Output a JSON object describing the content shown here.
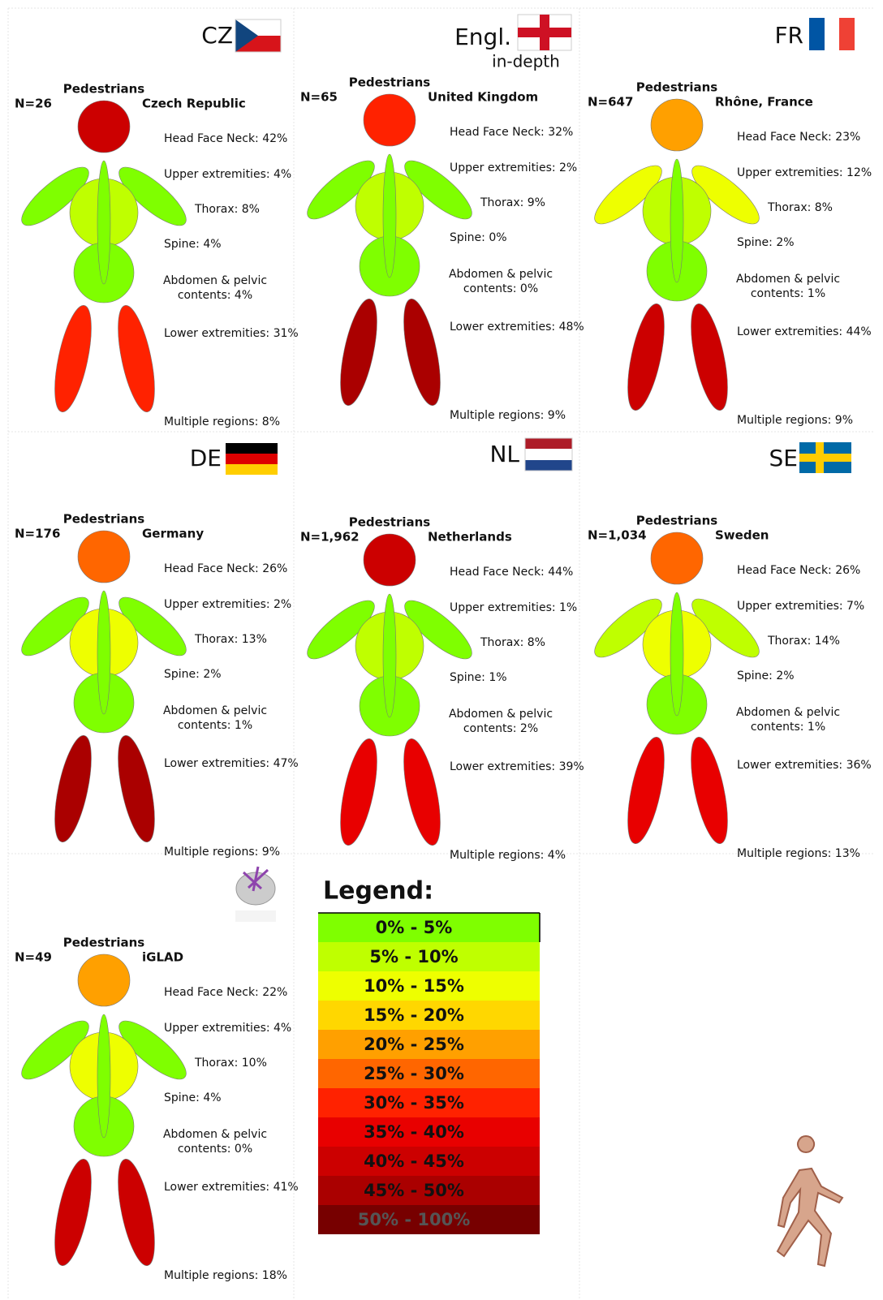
{
  "legend": {
    "title": "Legend:",
    "items": [
      {
        "label": "0% - 5%",
        "color": "#7fff00"
      },
      {
        "label": "5% - 10%",
        "color": "#bfff00"
      },
      {
        "label": "10% - 15%",
        "color": "#eeff00"
      },
      {
        "label": "15% - 20%",
        "color": "#ffd700"
      },
      {
        "label": "20% - 25%",
        "color": "#ffa000"
      },
      {
        "label": "25% - 30%",
        "color": "#ff6600"
      },
      {
        "label": "30% - 35%",
        "color": "#ff2200"
      },
      {
        "label": "35% - 40%",
        "color": "#e80000"
      },
      {
        "label": "40% - 45%",
        "color": "#cc0000"
      },
      {
        "label": "45% - 50%",
        "color": "#aa0000"
      },
      {
        "label": "50% - 100%",
        "color": "#770000"
      }
    ]
  },
  "panels": [
    {
      "code": "CZ",
      "n": "N=26",
      "group": "Pedestrians",
      "region": "Czech Republic",
      "texts": {
        "head": "Head Face Neck: 42%",
        "upper": "Upper extremities: 4%",
        "thorax": "Thorax: 8%",
        "spine": "Spine: 4%",
        "abdomen": [
          "Abdomen & pelvic",
          "contents: 4%"
        ],
        "lower": "Lower extremities: 31%",
        "multiple": "Multiple regions: 8%"
      },
      "colors": {
        "head": "#cc0000",
        "arms": "#7fff00",
        "thorax": "#bfff00",
        "spine": "#7fff00",
        "abdomen": "#7fff00",
        "legs": "#ff2200"
      }
    },
    {
      "code": "Engl.",
      "subcode": "in-depth",
      "n": "N=65",
      "group": "Pedestrians",
      "region": "United Kingdom",
      "texts": {
        "head": "Head Face Neck: 32%",
        "upper": "Upper extremities: 2%",
        "thorax": "Thorax: 9%",
        "spine": "Spine: 0%",
        "abdomen": [
          "Abdomen & pelvic",
          "contents: 0%"
        ],
        "lower": "Lower extremities: 48%",
        "multiple": "Multiple regions: 9%"
      },
      "colors": {
        "head": "#ff2200",
        "arms": "#7fff00",
        "thorax": "#bfff00",
        "spine": "#7fff00",
        "abdomen": "#7fff00",
        "legs": "#aa0000"
      }
    },
    {
      "code": "FR",
      "n": "N=647",
      "group": "Pedestrians",
      "region": "Rhône, France",
      "texts": {
        "head": "Head Face Neck: 23%",
        "upper": "Upper extremities: 12%",
        "thorax": "Thorax: 8%",
        "spine": "Spine: 2%",
        "abdomen": [
          "Abdomen & pelvic",
          "contents: 1%"
        ],
        "lower": "Lower extremities: 44%",
        "multiple": "Multiple regions: 9%"
      },
      "colors": {
        "head": "#ffa000",
        "arms": "#eeff00",
        "thorax": "#bfff00",
        "spine": "#7fff00",
        "abdomen": "#7fff00",
        "legs": "#cc0000"
      }
    },
    {
      "code": "DE",
      "n": "N=176",
      "group": "Pedestrians",
      "region": "Germany",
      "texts": {
        "head": "Head Face Neck: 26%",
        "upper": "Upper extremities: 2%",
        "thorax": "Thorax: 13%",
        "spine": "Spine: 2%",
        "abdomen": [
          "Abdomen & pelvic",
          "contents: 1%"
        ],
        "lower": "Lower extremities: 47%",
        "multiple": "Multiple regions: 9%"
      },
      "colors": {
        "head": "#ff6600",
        "arms": "#7fff00",
        "thorax": "#eeff00",
        "spine": "#7fff00",
        "abdomen": "#7fff00",
        "legs": "#aa0000"
      }
    },
    {
      "code": "NL",
      "n": "N=1,962",
      "group": "Pedestrians",
      "region": "Netherlands",
      "texts": {
        "head": "Head Face Neck: 44%",
        "upper": "Upper extremities: 1%",
        "thorax": "Thorax: 8%",
        "spine": "Spine: 1%",
        "abdomen": [
          "Abdomen & pelvic",
          "contents: 2%"
        ],
        "lower": "Lower extremities: 39%",
        "multiple": "Multiple regions: 4%"
      },
      "colors": {
        "head": "#cc0000",
        "arms": "#7fff00",
        "thorax": "#bfff00",
        "spine": "#7fff00",
        "abdomen": "#7fff00",
        "legs": "#e80000"
      }
    },
    {
      "code": "SE",
      "n": "N=1,034",
      "group": "Pedestrians",
      "region": "Sweden",
      "texts": {
        "head": "Head Face Neck: 26%",
        "upper": "Upper extremities: 7%",
        "thorax": "Thorax: 14%",
        "spine": "Spine: 2%",
        "abdomen": [
          "Abdomen & pelvic",
          "contents: 1%"
        ],
        "lower": "Lower extremities: 36%",
        "multiple": "Multiple regions: 13%"
      },
      "colors": {
        "head": "#ff6600",
        "arms": "#bfff00",
        "thorax": "#eeff00",
        "spine": "#7fff00",
        "abdomen": "#7fff00",
        "legs": "#e80000"
      }
    },
    {
      "n": "N=49",
      "group": "Pedestrians",
      "region": "iGLAD",
      "texts": {
        "head": "Head Face Neck: 22%",
        "upper": "Upper extremities: 4%",
        "thorax": "Thorax: 10%",
        "spine": "Spine: 4%",
        "abdomen": [
          "Abdomen & pelvic",
          "contents: 0%"
        ],
        "lower": "Lower extremities: 41%",
        "multiple": "Multiple regions: 18%"
      },
      "colors": {
        "head": "#ffa000",
        "arms": "#7fff00",
        "thorax": "#eeff00",
        "spine": "#7fff00",
        "abdomen": "#7fff00",
        "legs": "#cc0000"
      }
    }
  ]
}
